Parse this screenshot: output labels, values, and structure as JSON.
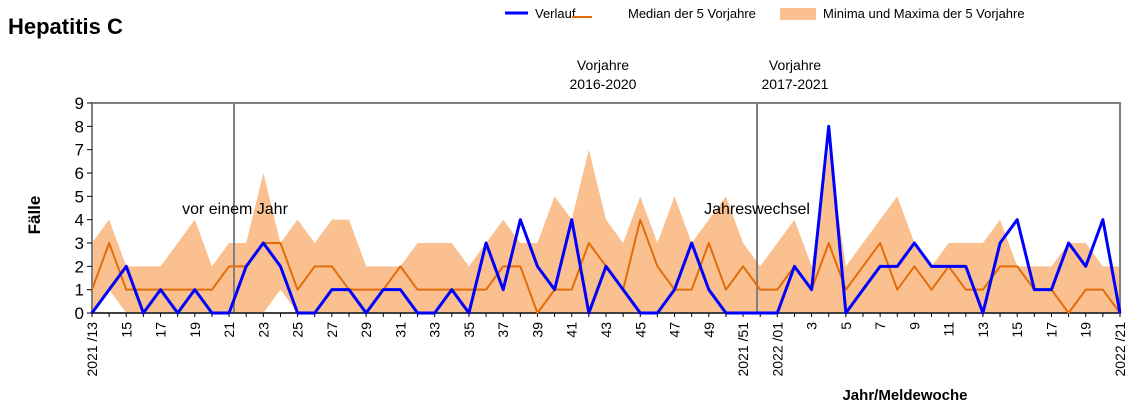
{
  "chart_data": {
    "type": "line",
    "title": "Hepatitis C",
    "x_label": "Jahr/Meldewoche",
    "y_label": "Fälle",
    "categories": [
      "2021 /13",
      null,
      "15",
      null,
      "17",
      null,
      "19",
      null,
      "21",
      null,
      "23",
      null,
      "25",
      null,
      "27",
      null,
      "29",
      null,
      "31",
      null,
      "33",
      null,
      "35",
      null,
      "37",
      null,
      "39",
      null,
      "41",
      null,
      "43",
      null,
      "45",
      null,
      "47",
      null,
      "49",
      null,
      "2021 /51",
      null,
      "2022 /01",
      null,
      "3",
      null,
      "5",
      null,
      "7",
      null,
      "9",
      null,
      "11",
      null,
      "13",
      null,
      "15",
      null,
      "17",
      null,
      "19",
      null,
      "2022 /21"
    ],
    "series": [
      {
        "name": "Verlauf",
        "color": "#0000ff",
        "values": [
          0,
          1,
          2,
          0,
          1,
          0,
          1,
          0,
          0,
          2,
          3,
          2,
          0,
          0,
          1,
          1,
          0,
          1,
          1,
          0,
          0,
          1,
          0,
          3,
          1,
          4,
          2,
          1,
          4,
          0,
          2,
          1,
          0,
          0,
          1,
          3,
          1,
          0,
          0,
          0,
          0,
          2,
          1,
          8,
          0,
          1,
          2,
          2,
          3,
          2,
          2,
          2,
          0,
          3,
          4,
          1,
          1,
          3,
          2,
          4,
          0
        ]
      },
      {
        "name": "Median der 5 Vorjahre",
        "color": "#e36c09",
        "values": [
          1,
          3,
          1,
          1,
          1,
          1,
          1,
          1,
          2,
          2,
          3,
          3,
          1,
          2,
          2,
          1,
          1,
          1,
          2,
          1,
          1,
          1,
          1,
          1,
          2,
          2,
          0,
          1,
          1,
          3,
          2,
          1,
          4,
          2,
          1,
          1,
          3,
          1,
          2,
          1,
          1,
          2,
          1,
          3,
          1,
          2,
          3,
          1,
          2,
          1,
          2,
          1,
          1,
          2,
          2,
          1,
          1,
          0,
          1,
          1,
          0
        ]
      }
    ],
    "band": {
      "name": "Minima und Maxima der 5 Vorjahre",
      "color": "#fac090",
      "min": [
        0,
        1,
        0,
        0,
        0,
        0,
        0,
        0,
        0,
        0,
        0,
        1,
        0,
        0,
        0,
        0,
        0,
        0,
        0,
        0,
        0,
        0,
        0,
        0,
        0,
        0,
        0,
        0,
        0,
        0,
        0,
        0,
        0,
        0,
        0,
        0,
        0,
        0,
        0,
        0,
        0,
        0,
        0,
        0,
        0,
        0,
        0,
        0,
        0,
        0,
        0,
        0,
        0,
        0,
        0,
        0,
        0,
        0,
        0,
        0,
        0
      ],
      "max": [
        3,
        4,
        2,
        2,
        2,
        3,
        4,
        2,
        3,
        3,
        6,
        3,
        4,
        3,
        4,
        4,
        2,
        2,
        2,
        3,
        3,
        3,
        2,
        3,
        4,
        3,
        3,
        5,
        4,
        7,
        4,
        3,
        5,
        3,
        5,
        3,
        4,
        5,
        3,
        2,
        3,
        4,
        2,
        7,
        2,
        3,
        4,
        5,
        3,
        2,
        3,
        3,
        3,
        4,
        2,
        2,
        2,
        3,
        3,
        2,
        2
      ]
    },
    "annotations": [
      "vor einem Jahr",
      "Vorjahre",
      "2016-2020",
      "Jahreswechsel",
      "Vorjahre",
      "2017-2021"
    ],
    "ylim": [
      0,
      9
    ],
    "yticks": [
      0,
      1,
      2,
      3,
      4,
      5,
      6,
      7,
      8,
      9
    ],
    "legend": "top-right"
  }
}
